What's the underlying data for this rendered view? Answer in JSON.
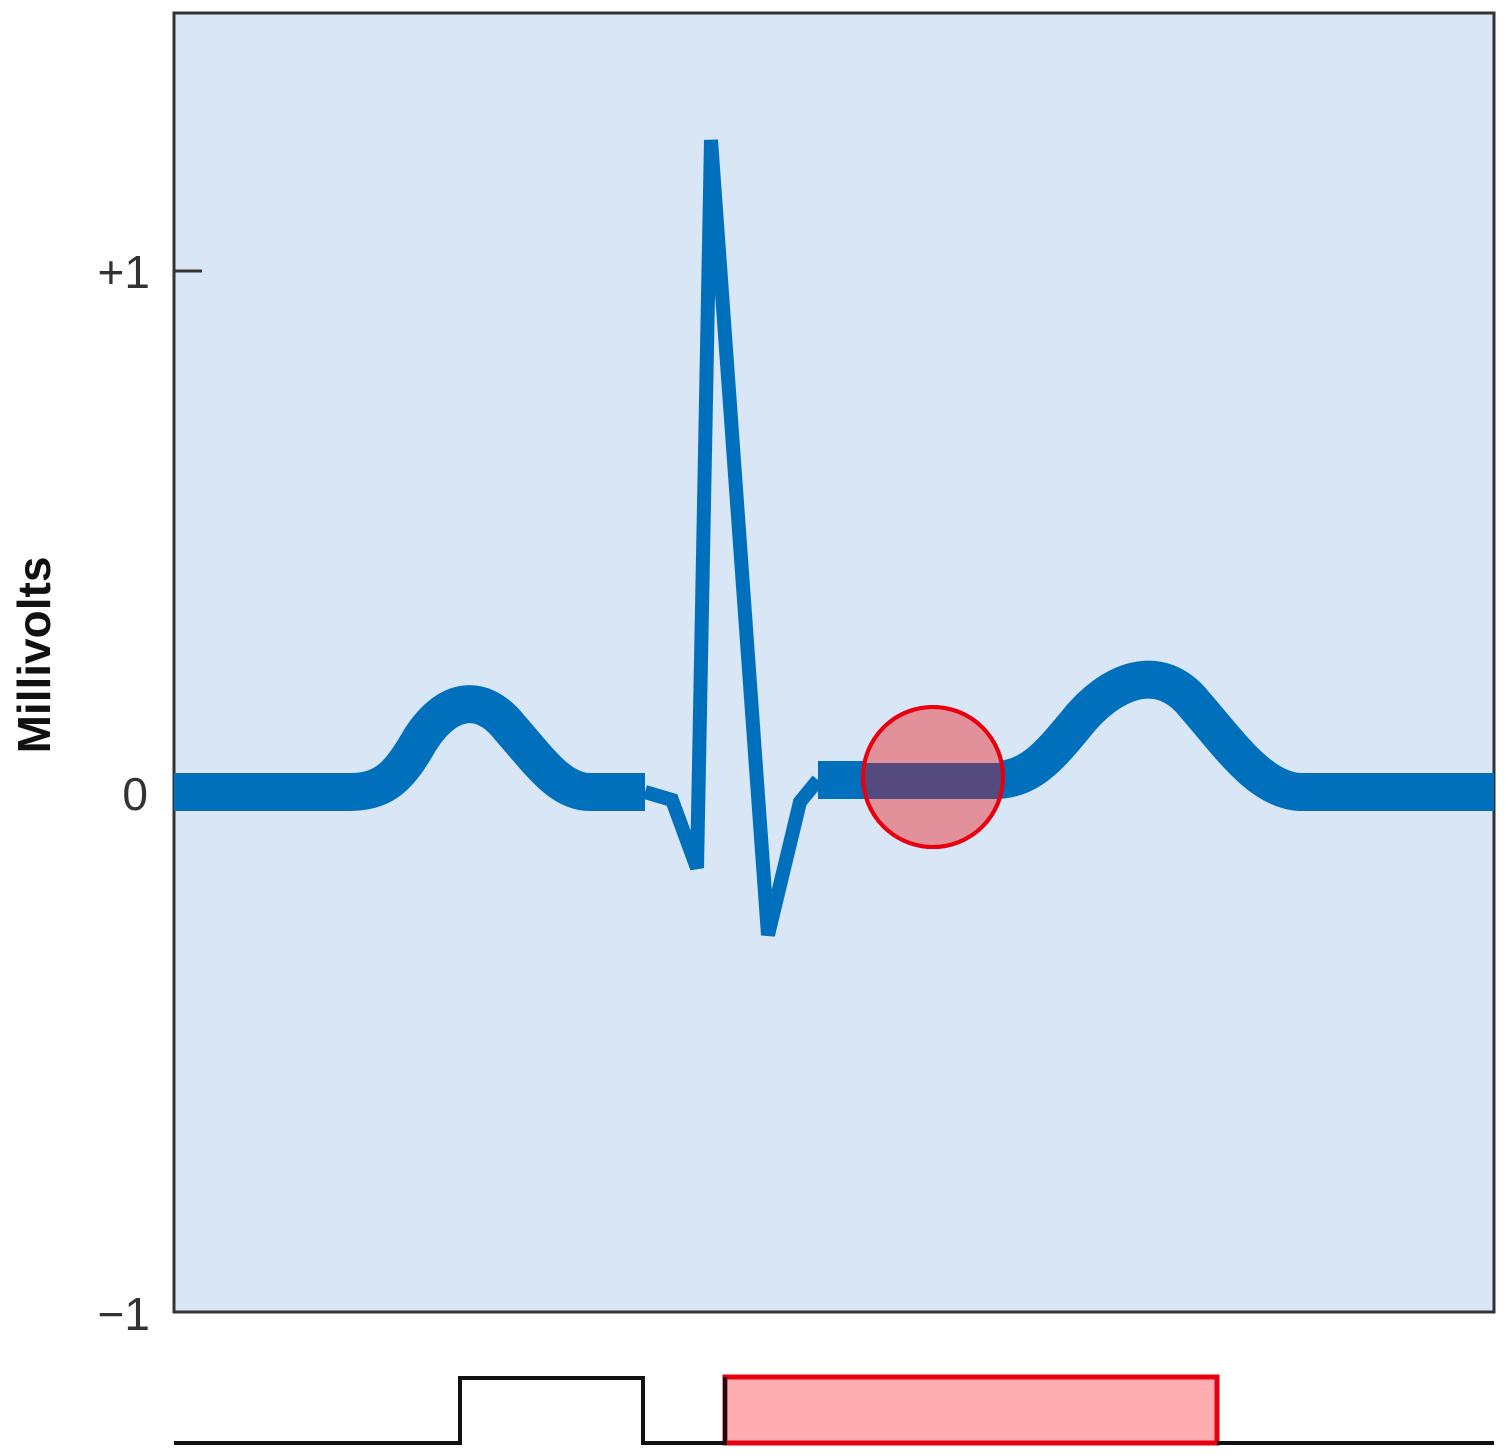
{
  "figure": {
    "ylabel": "Millivolts",
    "ticks": [
      {
        "value": 1,
        "label": "+1"
      },
      {
        "value": 0,
        "label": "0"
      },
      {
        "value": -1,
        "label": "−1"
      }
    ]
  },
  "chart_data": {
    "type": "line",
    "ylabel": "Millivolts",
    "ylim": [
      -1,
      1.3
    ],
    "grid": false,
    "series": [
      {
        "values_description_free": true,
        "y_peaks": {
          "P": 0.18,
          "Q": -0.15,
          "R": 1.25,
          "S": -0.27,
          "T": 0.23,
          "baseline": 0
        }
      }
    ]
  },
  "colors": {
    "plot_background": "#d8e6f6",
    "trace": "#0070bd",
    "highlight_fill": "#e2909a",
    "highlight_stroke": "#e8000e",
    "highlight_overlap": "#544a7e",
    "timing_bar_fill": "#ffadb0",
    "axis": "#333333"
  },
  "icons": {
    "segment_marker": "circle-highlight",
    "interval_marker": "rect-highlight"
  }
}
